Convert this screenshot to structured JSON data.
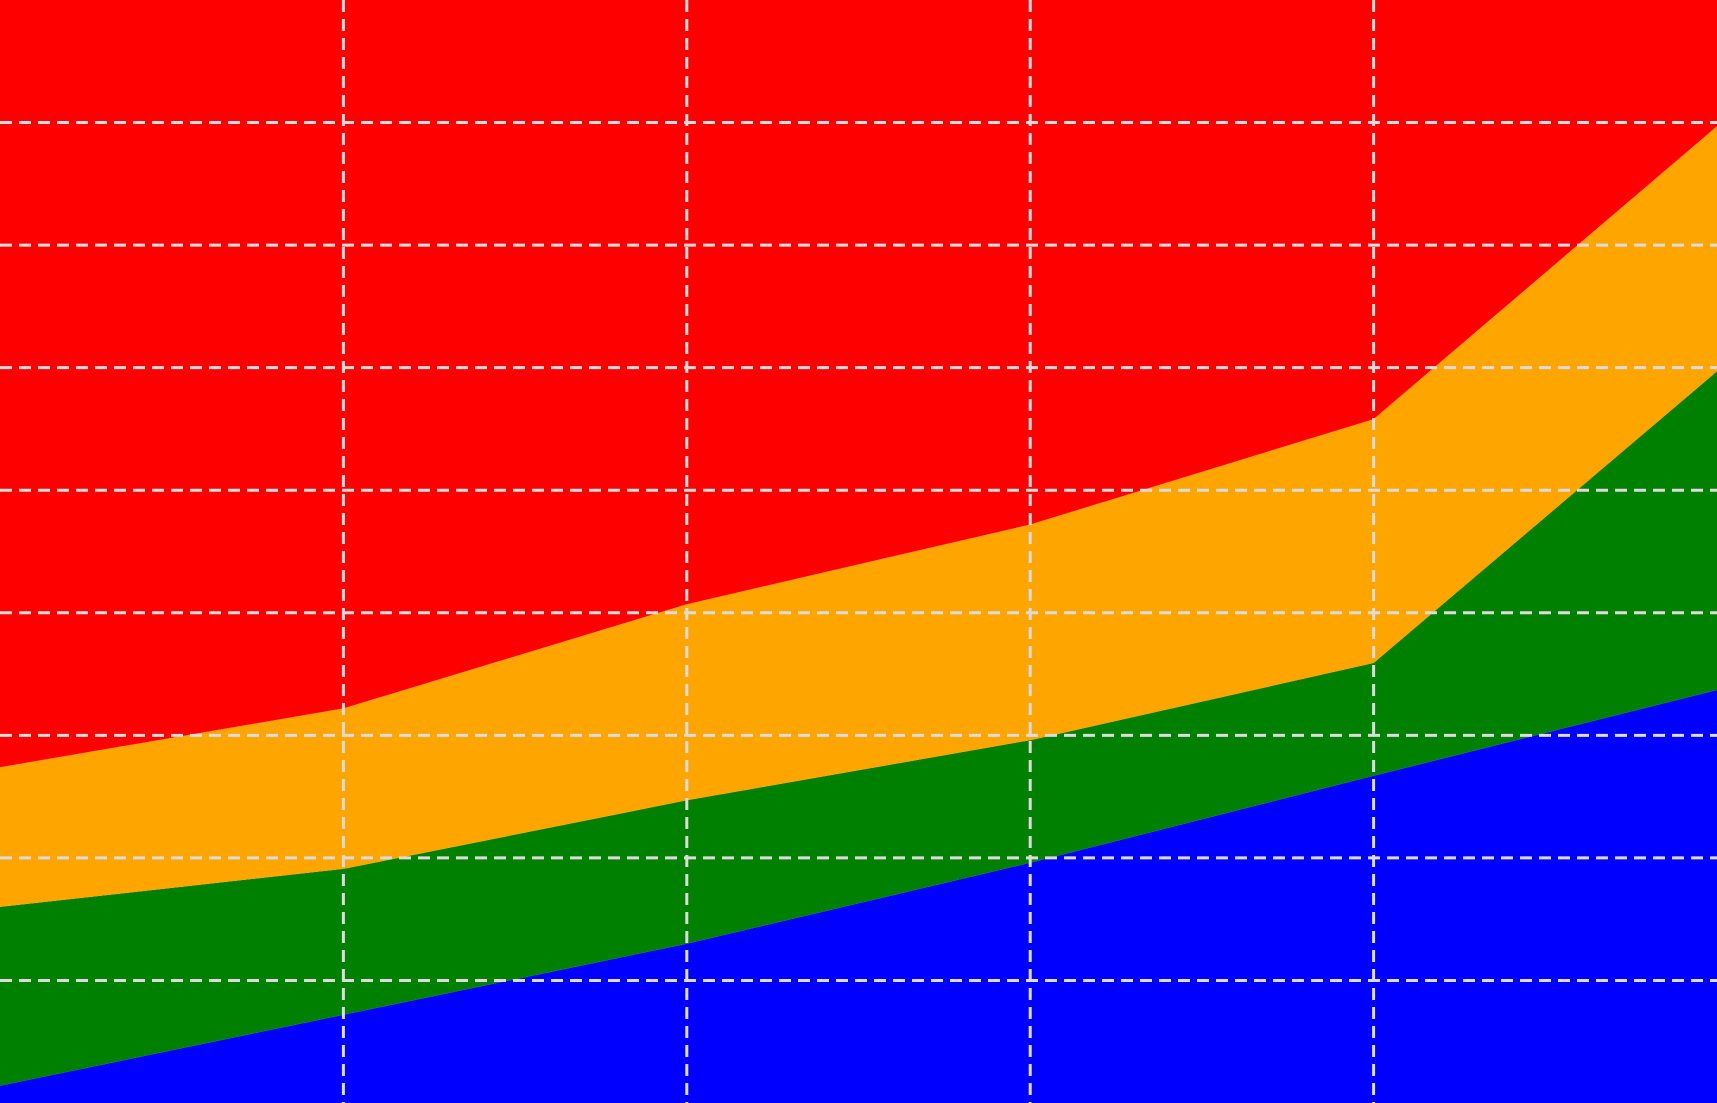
{
  "chart_data": {
    "type": "area",
    "stacked": true,
    "title": "",
    "xlabel": "",
    "ylabel": "",
    "x": [
      0,
      1,
      2,
      3,
      4,
      5
    ],
    "xlim": [
      0,
      5
    ],
    "ylim": [
      0,
      9
    ],
    "grid": true,
    "legend": "none",
    "series": [
      {
        "color": "#0000FF",
        "values": [
          0.14,
          0.72,
          1.3,
          1.96,
          2.67,
          3.37
        ]
      },
      {
        "color": "#008000",
        "values": [
          1.46,
          1.19,
          1.17,
          1.0,
          0.92,
          2.6
        ]
      },
      {
        "color": "#FFA500",
        "values": [
          1.14,
          1.31,
          1.6,
          1.76,
          1.99,
          2.0
        ]
      },
      {
        "color": "#FF0000",
        "values": [
          6.26,
          5.78,
          4.93,
          4.28,
          3.42,
          1.03
        ]
      }
    ]
  }
}
